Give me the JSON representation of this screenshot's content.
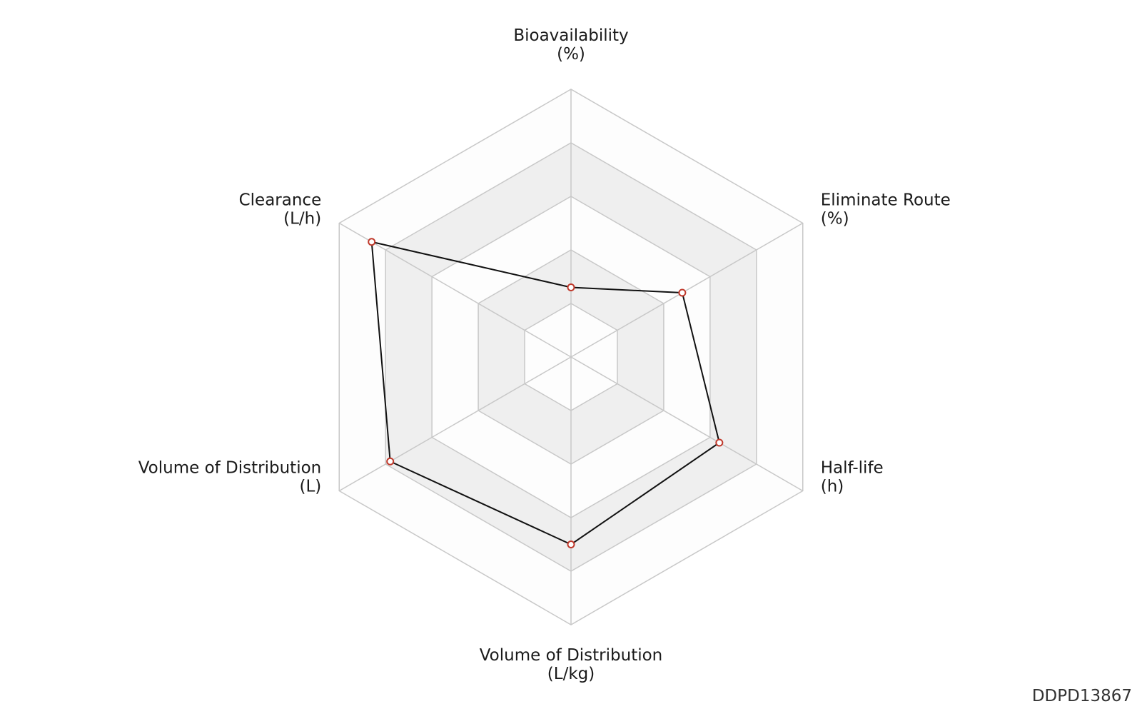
{
  "chart_data": {
    "type": "radar",
    "axes": [
      {
        "label": "Bioavailability",
        "unit": "(%)"
      },
      {
        "label": "Eliminate Route",
        "unit": "(%)"
      },
      {
        "label": "Half-life",
        "unit": "(h)"
      },
      {
        "label": "Volume of Distribution",
        "unit": "(L/kg)"
      },
      {
        "label": "Volume of Distribution",
        "unit": "(L)"
      },
      {
        "label": "Clearance",
        "unit": "(L/h)"
      }
    ],
    "levels": 5,
    "range": [
      0,
      5
    ],
    "values": [
      1.3,
      2.4,
      3.2,
      3.5,
      3.9,
      4.3
    ],
    "grid": true,
    "colors": {
      "band_shaded": "#efefef",
      "band_plain": "#fdfdfd",
      "grid_line": "#c8c8c8",
      "series_line": "#111111",
      "marker_stroke": "#c0392b",
      "marker_fill": "#ffffff"
    }
  },
  "footer": {
    "id": "DDPD13867"
  }
}
